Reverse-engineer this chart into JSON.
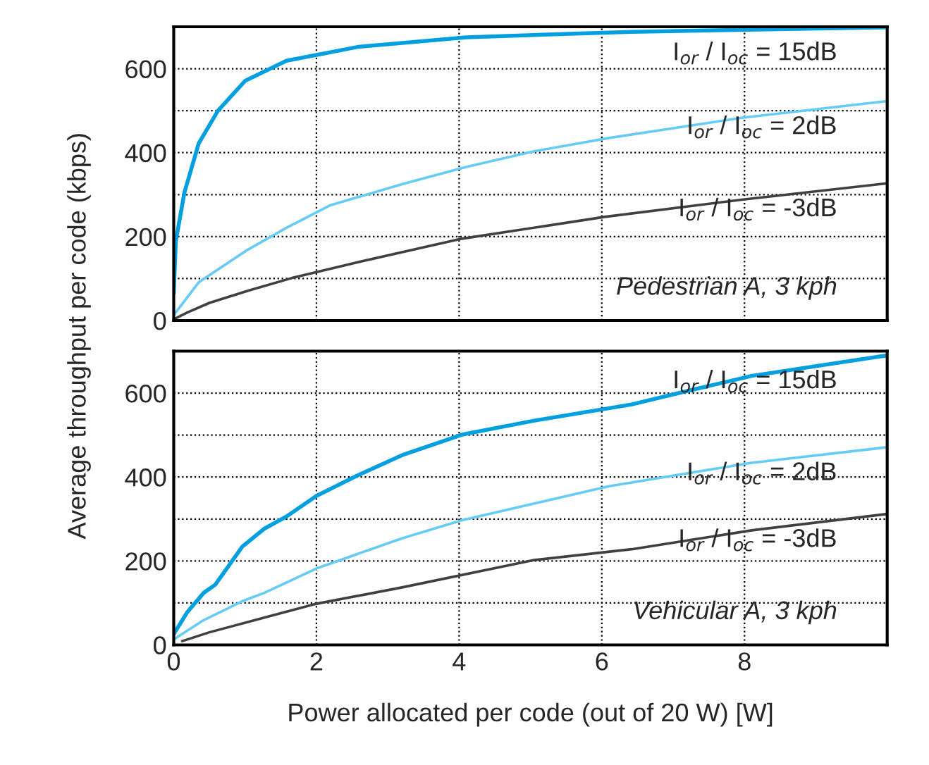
{
  "chart_data": [
    {
      "type": "line",
      "ylabel": "Average throughput per code (kbps)",
      "annotations": [
        "Pedestrian A, 3 kph"
      ],
      "xlim": [
        0,
        10
      ],
      "xticks": [
        0,
        2,
        4,
        6,
        8
      ],
      "ylim": [
        0,
        700
      ],
      "yticks": [
        0,
        {
          "value": 100,
          "label": null
        },
        200,
        {
          "value": 300,
          "label": null
        },
        400,
        {
          "value": 500,
          "label": null
        },
        600
      ],
      "tick_labels": "y",
      "grid": true,
      "line_style": "solid",
      "series": [
        {
          "name": "I$_{or}$ / I$_{oc}$ = 15dB",
          "color": "#00a0e0",
          "x": [
            0,
            0.03,
            0.15,
            0.35,
            0.62,
            1.0,
            1.58,
            2.58,
            4.1,
            6.4,
            10
          ],
          "values": [
            65,
            190,
            305,
            422,
            500,
            571,
            619,
            652,
            675,
            688,
            699
          ]
        },
        {
          "name": "I$_{or}$ / I$_{oc}$ = 2dB",
          "color": "#66ccf5",
          "x": [
            0,
            0.35,
            1.04,
            1.58,
            2.2,
            3.2,
            4.1,
            5.04,
            6.1,
            7.96,
            10
          ],
          "values": [
            13,
            91,
            169,
            221,
            275,
            325,
            366,
            403,
            435,
            483,
            523
          ]
        },
        {
          "name": "I$_{or}$ / I$_{oc}$ = -3dB",
          "color": "#404040",
          "x": [
            0,
            0.19,
            0.5,
            1.04,
            1.65,
            2.58,
            4.04,
            6.04,
            7.96,
            10
          ],
          "values": [
            3,
            19,
            42,
            71,
            101,
            139,
            195,
            247,
            288,
            327
          ]
        }
      ]
    },
    {
      "type": "line",
      "xlabel": "Power allocated per code (out of 20 W) [W]",
      "annotations": [
        "Vehicular A, 3 kph"
      ],
      "xlim": [
        0,
        10
      ],
      "xticks": [
        0,
        2,
        4,
        6,
        8
      ],
      "ylim": [
        0,
        700
      ],
      "yticks": [
        0,
        {
          "value": 100,
          "label": null
        },
        200,
        {
          "value": 300,
          "label": null
        },
        400,
        {
          "value": 500,
          "label": null
        },
        600
      ],
      "grid": true,
      "line_style": "solid",
      "series": [
        {
          "name": "I$_{or}$ / I$_{oc}$ = 15dB",
          "color": "#00a0e0",
          "x": [
            0,
            0.19,
            0.42,
            0.58,
            0.96,
            1.27,
            1.58,
            2,
            2.58,
            3.2,
            4.04,
            5.04,
            6.42,
            7.2,
            8.1,
            10
          ],
          "values": [
            26,
            78,
            124,
            143,
            234,
            277,
            306,
            355,
            404,
            452,
            501,
            534,
            573,
            605,
            641,
            690
          ]
        },
        {
          "name": "I$_{or}$ / I$_{oc}$ = 2dB",
          "color": "#66ccf5",
          "x": [
            0,
            0.42,
            0.96,
            1.27,
            2,
            3.2,
            4.04,
            6.1,
            8.1,
            10
          ],
          "values": [
            13,
            59,
            104,
            124,
            182,
            254,
            297,
            378,
            434,
            471
          ]
        },
        {
          "name": "I$_{or}$ / I$_{oc}$ = -3dB",
          "color": "#404040",
          "x": [
            0.12,
            0.5,
            1.27,
            2,
            3.2,
            5.04,
            6.42,
            8.1,
            10
          ],
          "values": [
            9,
            30,
            65,
            98,
            137,
            202,
            228,
            273,
            312
          ]
        }
      ]
    }
  ]
}
